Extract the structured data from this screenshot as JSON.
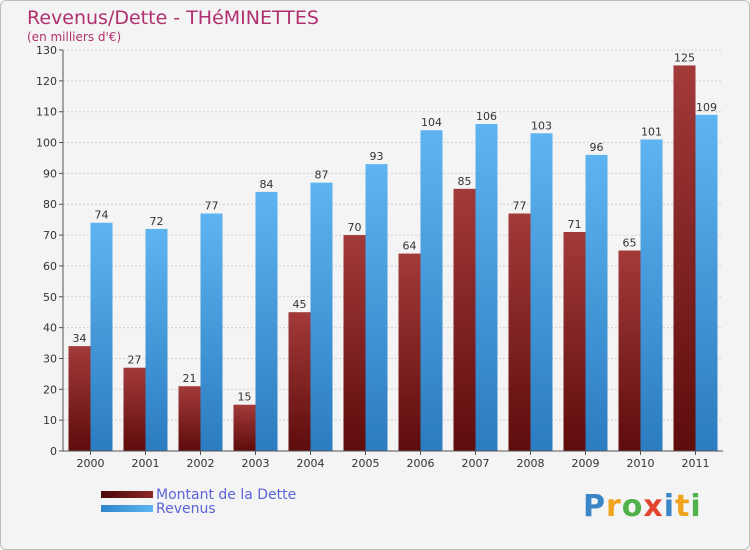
{
  "header": {
    "title": "Revenus/Dette - THéMINETTES",
    "subtitle": "(en milliers d'€)"
  },
  "legend": [
    {
      "label": "Montant de la Dette",
      "color": "#7a1f1f"
    },
    {
      "label": "Revenus",
      "color": "#4aa3e6"
    }
  ],
  "logo": {
    "text": "Proxiti",
    "letters": [
      {
        "ch": "P",
        "color": "#3b86c7"
      },
      {
        "ch": "r",
        "color": "#f0a31c"
      },
      {
        "ch": "o",
        "color": "#4fb24a"
      },
      {
        "ch": "x",
        "color": "#e2452f"
      },
      {
        "ch": "i",
        "color": "#3b86c7"
      },
      {
        "ch": "t",
        "color": "#f0a31c"
      },
      {
        "ch": "i",
        "color": "#4fb24a"
      }
    ]
  },
  "chart_data": {
    "type": "bar",
    "categories": [
      "2000",
      "2001",
      "2002",
      "2003",
      "2004",
      "2005",
      "2006",
      "2007",
      "2008",
      "2009",
      "2010",
      "2011"
    ],
    "series": [
      {
        "name": "Montant de la Dette",
        "values": [
          34,
          27,
          21,
          15,
          45,
          70,
          64,
          85,
          77,
          71,
          65,
          125
        ],
        "color": "#7a1f1f"
      },
      {
        "name": "Revenus",
        "values": [
          74,
          72,
          77,
          84,
          87,
          93,
          104,
          106,
          103,
          96,
          101,
          109
        ],
        "color": "#4aa3e6"
      }
    ],
    "yticks": [
      0,
      10,
      20,
      30,
      40,
      50,
      60,
      70,
      80,
      90,
      100,
      110,
      120,
      130
    ],
    "ylim": [
      0,
      130
    ],
    "xlabel": "",
    "ylabel": "",
    "grid": true,
    "legend_position": "bottom-left"
  }
}
